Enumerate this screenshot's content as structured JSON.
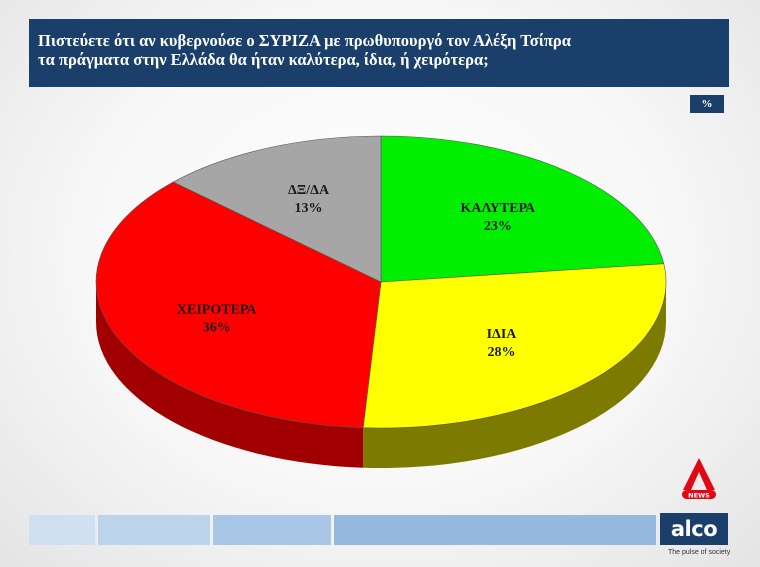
{
  "header": {
    "title_line1": "Πιστεύετε ότι αν κυβερνούσε ο ΣΥΡΙΖΑ με πρωθυπουργό τον Αλέξη Τσίπρα",
    "title_line2": "τα πράγματα στην Ελλάδα θα ήταν καλύτερα, ίδια, ή χειρότερα;",
    "unit_badge": "%"
  },
  "chart_data": {
    "type": "pie",
    "style": "3d-tilted",
    "slices": [
      {
        "label": "ΚΑΛΥΤΕΡΑ",
        "value": 23,
        "value_label": "23%",
        "color": "#00ee00",
        "side_color": "#5f6600"
      },
      {
        "label": "ΙΔΙΑ",
        "value": 28,
        "value_label": "28%",
        "color": "#ffff00",
        "side_color": "#7d7a00"
      },
      {
        "label": "ΧΕΙΡΟΤΕΡΑ",
        "value": 36,
        "value_label": "36%",
        "color": "#ff0000",
        "side_color": "#a00000"
      },
      {
        "label": "ΔΞ/ΔΑ",
        "value": 13,
        "value_label": "13%",
        "color": "#a6a6a6",
        "side_color": "#6e6e6e"
      }
    ],
    "start": "12 o'clock",
    "direction": "clockwise"
  },
  "branding": {
    "news_logo_text": "NEWS",
    "company_logo_text": "alco",
    "tagline": "The pulse of society",
    "brand_color": "#1a3f6b",
    "accent_color": "#e30613"
  },
  "footer": {
    "strip_colors": [
      "#cfe0f1",
      "#bcd3ec",
      "#a9c6e6",
      "#96b9e0"
    ]
  }
}
